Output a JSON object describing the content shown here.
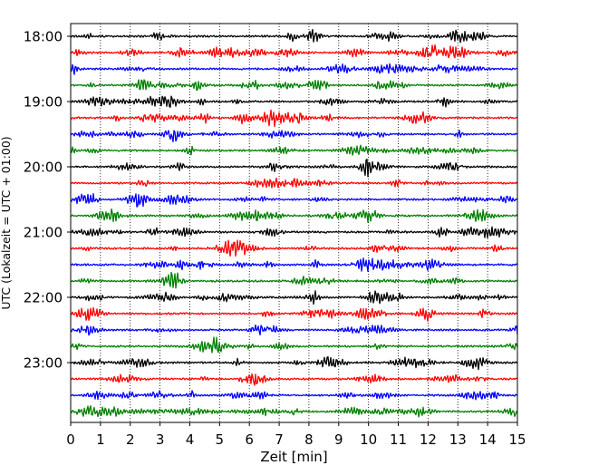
{
  "chart_data": {
    "type": "line",
    "title": "",
    "xlabel": "Zeit  [min]",
    "ylabel": "UTC (Lokalzeit = UTC + 01:00)",
    "xlim": [
      0,
      15
    ],
    "x_ticks": [
      "0",
      "1",
      "2",
      "3",
      "4",
      "5",
      "6",
      "7",
      "8",
      "9",
      "10",
      "11",
      "12",
      "13",
      "14",
      "15"
    ],
    "y_tick_labels": [
      "18:00",
      "19:00",
      "20:00",
      "21:00",
      "22:00",
      "23:00"
    ],
    "grid": "vertical dotted",
    "trace_colors": [
      "#000000",
      "#ff0000",
      "#0000ff",
      "#008000"
    ],
    "traces": [
      {
        "utc": "18:00",
        "color": "#000000"
      },
      {
        "utc": "18:15",
        "color": "#ff0000"
      },
      {
        "utc": "18:30",
        "color": "#0000ff"
      },
      {
        "utc": "18:45",
        "color": "#008000"
      },
      {
        "utc": "19:00",
        "color": "#000000"
      },
      {
        "utc": "19:15",
        "color": "#ff0000"
      },
      {
        "utc": "19:30",
        "color": "#0000ff"
      },
      {
        "utc": "19:45",
        "color": "#008000"
      },
      {
        "utc": "20:00",
        "color": "#000000"
      },
      {
        "utc": "20:15",
        "color": "#ff0000"
      },
      {
        "utc": "20:30",
        "color": "#0000ff"
      },
      {
        "utc": "20:45",
        "color": "#008000"
      },
      {
        "utc": "21:00",
        "color": "#000000"
      },
      {
        "utc": "21:15",
        "color": "#ff0000"
      },
      {
        "utc": "21:30",
        "color": "#0000ff"
      },
      {
        "utc": "21:45",
        "color": "#008000"
      },
      {
        "utc": "22:00",
        "color": "#000000"
      },
      {
        "utc": "22:15",
        "color": "#ff0000"
      },
      {
        "utc": "22:30",
        "color": "#0000ff"
      },
      {
        "utc": "22:45",
        "color": "#008000"
      },
      {
        "utc": "23:00",
        "color": "#000000"
      },
      {
        "utc": "23:15",
        "color": "#ff0000"
      },
      {
        "utc": "23:30",
        "color": "#0000ff"
      },
      {
        "utc": "23:45",
        "color": "#008000"
      }
    ]
  }
}
